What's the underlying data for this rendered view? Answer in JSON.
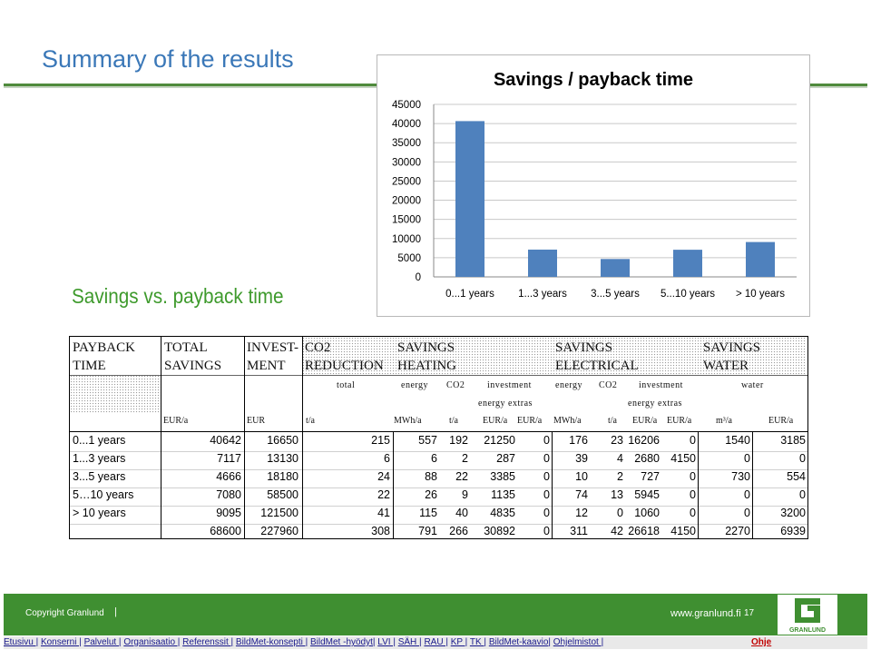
{
  "slide": {
    "title": "Summary of the results",
    "subtitle": "Savings vs. payback time"
  },
  "chart_data": {
    "type": "bar",
    "title": "Savings / payback time",
    "categories": [
      "0...1 years",
      "1...3 years",
      "3...5 years",
      "5...10 years",
      "> 10 years"
    ],
    "values": [
      40642,
      7117,
      4666,
      7080,
      9095
    ],
    "ylim": [
      0,
      45000
    ],
    "yticks": [
      0,
      5000,
      10000,
      15000,
      20000,
      25000,
      30000,
      35000,
      40000,
      45000
    ],
    "grid": true,
    "bar_color": "#4f81bd"
  },
  "table": {
    "headers": {
      "payback": [
        "PAYBACK",
        "TIME"
      ],
      "total": [
        "TOTAL",
        "SAVINGS"
      ],
      "invest": [
        "INVEST-",
        "MENT"
      ],
      "co2": [
        "CO2",
        "REDUCTION"
      ],
      "heating": [
        "SAVINGS",
        "HEATING"
      ],
      "electrical": [
        "SAVINGS",
        "ELECTRICAL"
      ],
      "water": [
        "SAVINGS",
        "WATER"
      ]
    },
    "sub": {
      "total": "total",
      "energy": "energy",
      "co2": "CO2",
      "investment": "investment",
      "energy_extras": "energy  extras",
      "water": "water"
    },
    "units": [
      "EUR/a",
      "EUR",
      "t/a",
      "MWh/a",
      "t/a",
      "EUR/a",
      "EUR/a",
      "MWh/a",
      "t/a",
      "EUR/a",
      "EUR/a",
      "m³/a",
      "EUR/a"
    ],
    "rows": [
      {
        "label": "0...1 years",
        "values": [
          "40642",
          "16650",
          "215",
          "557",
          "192",
          "21250",
          "0",
          "176",
          "23",
          "16206",
          "0",
          "1540",
          "3185"
        ]
      },
      {
        "label": "1...3 years",
        "values": [
          "7117",
          "13130",
          "6",
          "6",
          "2",
          "287",
          "0",
          "39",
          "4",
          "2680",
          "4150",
          "0",
          "0"
        ]
      },
      {
        "label": "3...5 years",
        "values": [
          "4666",
          "18180",
          "24",
          "88",
          "22",
          "3385",
          "0",
          "10",
          "2",
          "727",
          "0",
          "730",
          "554"
        ]
      },
      {
        "label": "5…10 years",
        "values": [
          "7080",
          "58500",
          "22",
          "26",
          "9",
          "1135",
          "0",
          "74",
          "13",
          "5945",
          "0",
          "0",
          "0"
        ]
      },
      {
        "label": "> 10 years",
        "values": [
          "9095",
          "121500",
          "41",
          "115",
          "40",
          "4835",
          "0",
          "12",
          "0",
          "1060",
          "0",
          "0",
          "3200"
        ]
      },
      {
        "label": "",
        "values": [
          "68600",
          "227960",
          "308",
          "791",
          "266",
          "30892",
          "0",
          "311",
          "42",
          "26618",
          "4150",
          "2270",
          "6939"
        ]
      }
    ]
  },
  "footer": {
    "copyright": "Copyright Granlund",
    "separator": "|",
    "website": "www.granlund.fi",
    "page": "17",
    "logo_text": "GRANLUND",
    "brand_color": "#3f8f31"
  },
  "nav": {
    "links": [
      "Etusivu |",
      "Konserni |",
      "Palvelut |",
      "Organisaatio |",
      "Referenssit |",
      "BildMet-konsepti |",
      "BildMet -hyödyt|",
      "LVI |",
      "SÄH |",
      "RAU |",
      "KP |",
      "TK |",
      "BildMet-kaavio|",
      "Ohjelmistot |"
    ],
    "help": "Ohje"
  }
}
